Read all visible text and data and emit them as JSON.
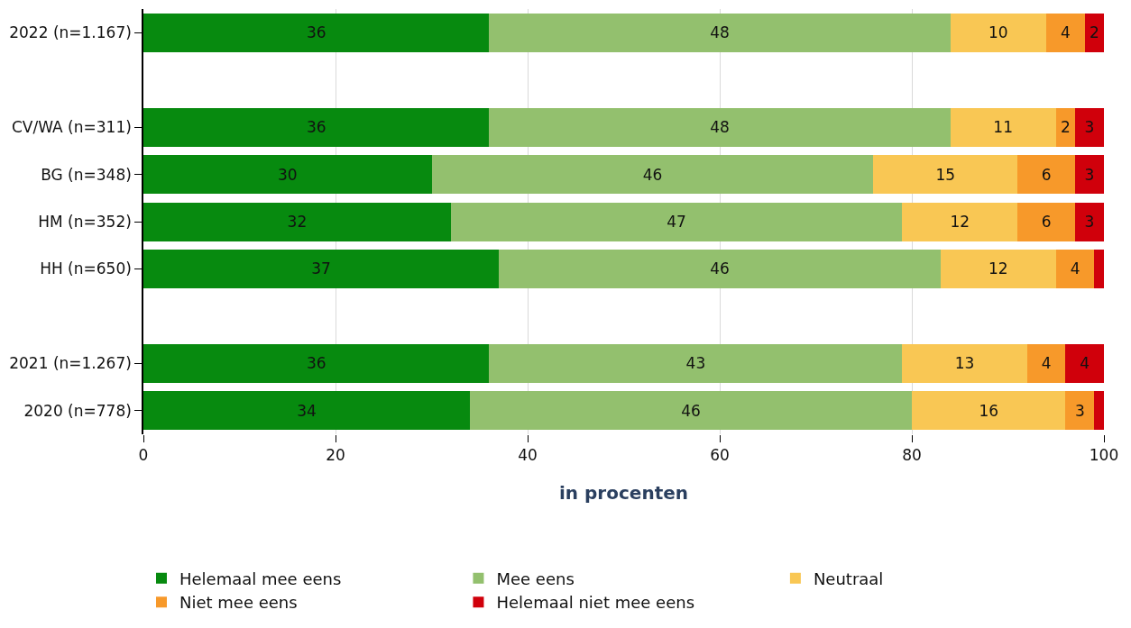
{
  "chart_data": {
    "type": "bar",
    "orientation": "horizontal",
    "stacked": true,
    "xlabel": "in procenten",
    "categories": [
      "2022 (n=1.167)",
      null,
      "CV/WA (n=311)",
      "BG (n=348)",
      "HM (n=352)",
      "HH (n=650)",
      null,
      "2021 (n=1.267)",
      "2020 (n=778)"
    ],
    "series": [
      {
        "name": "Helemaal mee eens",
        "color": "#078a0f",
        "values": [
          36,
          null,
          36,
          30,
          32,
          37,
          null,
          36,
          34
        ],
        "value_labels": [
          "36",
          null,
          "36",
          "30",
          "32",
          "37",
          null,
          "36",
          "34"
        ]
      },
      {
        "name": "Mee eens",
        "color": "#93c06e",
        "values": [
          48,
          null,
          48,
          46,
          47,
          46,
          null,
          43,
          46
        ],
        "value_labels": [
          "48",
          null,
          "48",
          "46",
          "47",
          "46",
          null,
          "43",
          "46"
        ]
      },
      {
        "name": "Neutraal",
        "color": "#f9c754",
        "values": [
          10,
          null,
          11,
          15,
          12,
          12,
          null,
          13,
          16
        ],
        "value_labels": [
          "10",
          null,
          "11",
          "15",
          "12",
          "12",
          null,
          "13",
          "16"
        ]
      },
      {
        "name": "Niet mee eens",
        "color": "#f7992a",
        "values": [
          4,
          null,
          2,
          6,
          6,
          4,
          null,
          4,
          3
        ],
        "value_labels": [
          "4",
          null,
          "2",
          "6",
          "6",
          "4",
          null,
          "4",
          "3"
        ]
      },
      {
        "name": "Helemaal niet mee eens",
        "color": "#d0000b",
        "values": [
          2,
          null,
          3,
          3,
          3,
          1,
          null,
          4,
          1
        ],
        "value_labels": [
          "2",
          null,
          "3",
          "3",
          "3",
          null,
          null,
          "4",
          null
        ]
      }
    ],
    "xlim": [
      0,
      100
    ],
    "xticks": [
      0,
      20,
      40,
      60,
      80,
      100
    ],
    "grid": "x",
    "legend": "bottom"
  }
}
